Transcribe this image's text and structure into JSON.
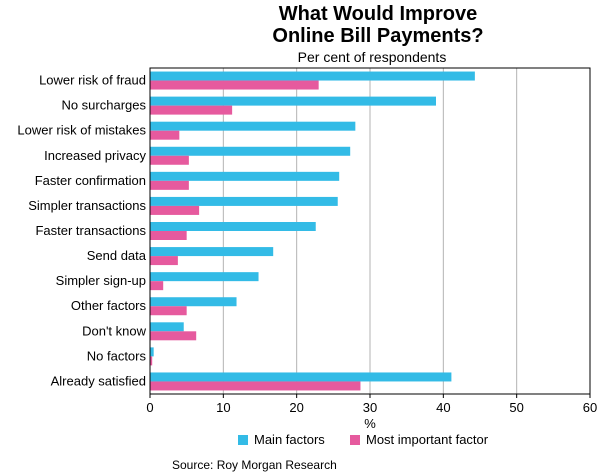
{
  "chart_data": {
    "type": "bar",
    "orientation": "horizontal",
    "title_line1": "What Would Improve",
    "title_line2": "Online Bill Payments?",
    "subtitle": "Per cent of respondents",
    "xlabel": "%",
    "ylabel": "",
    "xlim": [
      0,
      60
    ],
    "xticks": [
      "0",
      "10",
      "20",
      "30",
      "40",
      "50",
      "60"
    ],
    "grid": "vertical",
    "legend_position": "bottom",
    "categories": [
      "Lower risk of fraud",
      "No surcharges",
      "Lower risk of mistakes",
      "Increased privacy",
      "Faster confirmation",
      "Simpler transactions",
      "Faster transactions",
      "Send data",
      "Simpler sign-up",
      "Other factors",
      "Don't know",
      "No factors",
      "Already satisfied"
    ],
    "series": [
      {
        "name": "Main factors",
        "color": "#33bbe6",
        "values": [
          44.3,
          39.0,
          28.0,
          27.3,
          25.8,
          25.6,
          22.6,
          16.8,
          14.8,
          11.8,
          4.6,
          0.5,
          41.1
        ]
      },
      {
        "name": "Most important factor",
        "color": "#e65a9e",
        "values": [
          23.0,
          11.2,
          4.0,
          5.3,
          5.3,
          6.7,
          5.0,
          3.8,
          1.8,
          5.0,
          6.3,
          0.3,
          28.7
        ]
      }
    ],
    "source": "Source: Roy Morgan Research"
  }
}
